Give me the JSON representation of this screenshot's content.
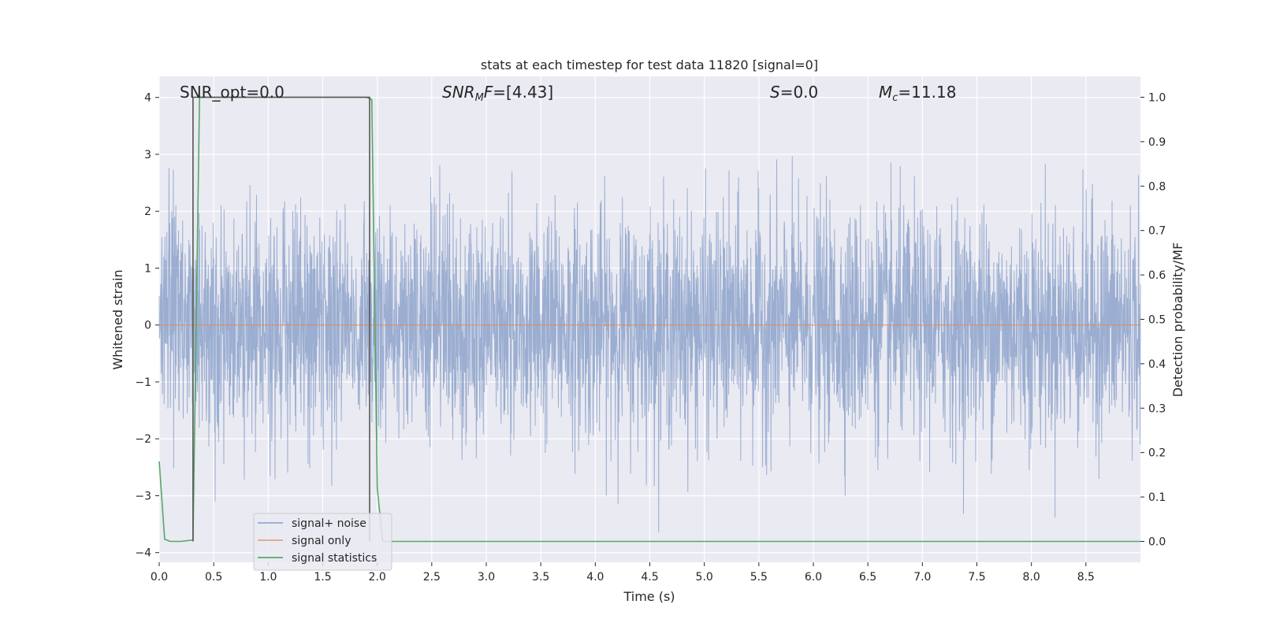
{
  "chart_data": {
    "type": "line",
    "title": "stats at each timestep for test data 11820 [signal=0]",
    "xlabel": "Time (s)",
    "ylabel": "Whitened strain",
    "y2label": "Detection probability/MF",
    "xlim": [
      0.0,
      9.0
    ],
    "ylim": [
      -4.17,
      4.37
    ],
    "y2lim": [
      -0.047,
      1.047
    ],
    "x_ticks": [
      "0.0",
      "0.5",
      "1.0",
      "1.5",
      "2.0",
      "2.5",
      "3.0",
      "3.5",
      "4.0",
      "4.5",
      "5.0",
      "5.5",
      "6.0",
      "6.5",
      "7.0",
      "7.5",
      "8.0",
      "8.5"
    ],
    "y_ticks": [
      "4",
      "3",
      "2",
      "1",
      "0",
      "−1",
      "−2",
      "−3",
      "−4"
    ],
    "y2_ticks": [
      "1.0",
      "0.9",
      "0.8",
      "0.7",
      "0.6",
      "0.5",
      "0.4",
      "0.3",
      "0.2",
      "0.1",
      "0.0"
    ],
    "grid": true,
    "legend": {
      "position": "lower-left",
      "entries": [
        "signal+ noise",
        "signal only",
        "signal statistics"
      ]
    },
    "annotations": {
      "snr_opt": "SNR_opt=0.0",
      "snr_mf_sym": "SNR",
      "snr_mf_sub": "M",
      "snr_mf_f": "F",
      "snr_mf_val": "=[4.43]",
      "s_sym": "S",
      "s_val": "=0.0",
      "mc_sym": "M",
      "mc_sub": "c",
      "mc_val": "=11.18"
    },
    "series": [
      {
        "name": "signal+ noise",
        "axis": "left",
        "color": "#4c72b0",
        "description_envelope": {
          "x_range": [
            0.0,
            9.0
          ],
          "approx_std": 1.0,
          "min": -3.65,
          "max": 4.02
        }
      },
      {
        "name": "signal only",
        "axis": "left",
        "color": "#dd8452",
        "x": [
          0.0,
          9.0
        ],
        "y": [
          0.0,
          0.0
        ]
      },
      {
        "name": "signal statistics",
        "axis": "right",
        "color": "#55a868",
        "x": [
          0.0,
          0.05,
          0.1,
          0.2,
          0.3,
          0.31,
          0.37,
          0.5,
          1.0,
          1.5,
          1.9,
          1.95,
          2.0,
          2.05,
          2.5,
          3.0,
          4.0,
          5.0,
          6.0,
          7.0,
          8.0,
          9.0
        ],
        "y": [
          0.18,
          0.005,
          0.0,
          0.0,
          0.003,
          0.003,
          1.0,
          1.0,
          1.0,
          1.0,
          1.0,
          0.995,
          0.12,
          0.0,
          0.0,
          0.0,
          0.0,
          0.0,
          0.0,
          0.0,
          0.0,
          0.0
        ]
      },
      {
        "name": "",
        "axis": "right",
        "color": "#555555",
        "x": [
          0.31,
          0.31,
          1.93,
          1.93
        ],
        "y": [
          0.0,
          1.0,
          1.0,
          0.0
        ]
      }
    ]
  }
}
